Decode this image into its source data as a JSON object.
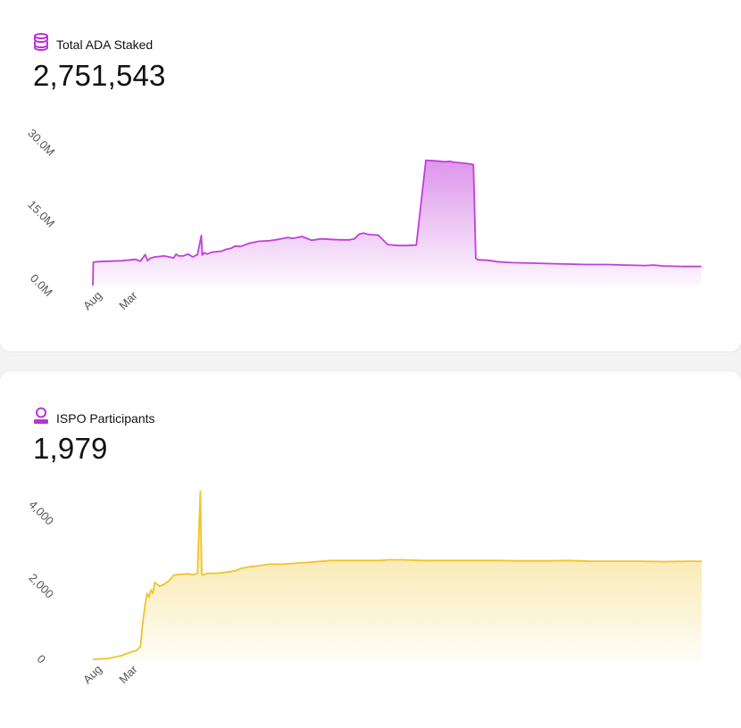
{
  "cards": [
    {
      "title": "Total ADA Staked",
      "value": "2,751,543",
      "icon": "coins-stack-icon",
      "accent": "#b833d6"
    },
    {
      "title": "ISPO Participants",
      "value": "1,979",
      "icon": "user-icon",
      "accent": "#f0c428"
    }
  ],
  "chart_data": [
    {
      "type": "area",
      "title": "Total ADA Staked",
      "xlabel": "",
      "ylabel": "",
      "ylim": [
        0,
        30000000
      ],
      "yticks": [
        0,
        15000000,
        30000000
      ],
      "ytick_labels": [
        "0.0M",
        "15.0M",
        "30.0M"
      ],
      "xticks": [
        {
          "label": "Aug",
          "x": 0.5
        },
        {
          "label": "Mar",
          "x": 8
        }
      ],
      "xlim": [
        0,
        128
      ],
      "color": "#c13fdb",
      "x": [
        0,
        0.1,
        1,
        3,
        6,
        9,
        10,
        11,
        11.5,
        12,
        13,
        15,
        17,
        17.5,
        18,
        19,
        20,
        21,
        22,
        22.8,
        23,
        23.4,
        24,
        25,
        27,
        28,
        29,
        30,
        31,
        33,
        35,
        37,
        39,
        41,
        42,
        44,
        46,
        48,
        50,
        52,
        54,
        55,
        56,
        57,
        58,
        60,
        62,
        64,
        66,
        68,
        70,
        72,
        74,
        75,
        76,
        77,
        78,
        79,
        80,
        80.5,
        81,
        83,
        85,
        88,
        92,
        96,
        100,
        104,
        108,
        112,
        116,
        118,
        120,
        124,
        127.9
      ],
      "y": [
        0,
        4900000,
        5000000,
        5100000,
        5200000,
        5500000,
        5100000,
        6500000,
        5200000,
        5700000,
        6000000,
        6200000,
        5800000,
        6600000,
        6200000,
        6200000,
        6600000,
        6000000,
        6500000,
        10500000,
        6400000,
        6900000,
        6600000,
        7000000,
        7200000,
        7600000,
        7800000,
        8300000,
        8200000,
        8900000,
        9300000,
        9400000,
        9700000,
        10100000,
        9900000,
        10300000,
        9500000,
        9800000,
        9700000,
        9600000,
        9600000,
        9800000,
        10800000,
        11000000,
        10700000,
        10600000,
        8600000,
        8400000,
        8400000,
        8500000,
        26300000,
        26200000,
        26000000,
        26100000,
        25900000,
        25800000,
        25700000,
        25600000,
        25400000,
        5700000,
        5400000,
        5300000,
        5000000,
        4800000,
        4700000,
        4600000,
        4500000,
        4400000,
        4400000,
        4300000,
        4200000,
        4300000,
        4100000,
        4000000,
        4000000
      ]
    },
    {
      "type": "area",
      "title": "ISPO Participants",
      "xlabel": "",
      "ylabel": "",
      "ylim": [
        0,
        4000
      ],
      "yticks": [
        0,
        2000,
        4000
      ],
      "ytick_labels": [
        "0",
        "2,000",
        "4,000"
      ],
      "xticks": [
        {
          "label": "Aug",
          "x": 0.5
        },
        {
          "label": "Mar",
          "x": 8
        }
      ],
      "xlim": [
        0,
        128
      ],
      "color": "#f0c428",
      "x": [
        0,
        3,
        6,
        8,
        9.2,
        10,
        10.5,
        11,
        11.4,
        11.8,
        12.2,
        12.6,
        13,
        14,
        15,
        16,
        17,
        18,
        19,
        20,
        21,
        22,
        22.6,
        22.9,
        23.2,
        24,
        26,
        28,
        30,
        31,
        33,
        35,
        37,
        40,
        45,
        50,
        55,
        60,
        62,
        65,
        70,
        75,
        80,
        85,
        90,
        95,
        100,
        105,
        110,
        115,
        120,
        125,
        128
      ],
      "y": [
        0,
        20,
        100,
        200,
        240,
        350,
        1000,
        1500,
        1800,
        1700,
        1900,
        1800,
        2100,
        2000,
        2050,
        2150,
        2300,
        2320,
        2330,
        2340,
        2310,
        2350,
        4600,
        2330,
        2300,
        2350,
        2350,
        2380,
        2420,
        2480,
        2530,
        2560,
        2600,
        2600,
        2650,
        2700,
        2700,
        2700,
        2720,
        2720,
        2700,
        2700,
        2700,
        2700,
        2690,
        2690,
        2700,
        2680,
        2680,
        2680,
        2670,
        2680,
        2680
      ]
    }
  ]
}
